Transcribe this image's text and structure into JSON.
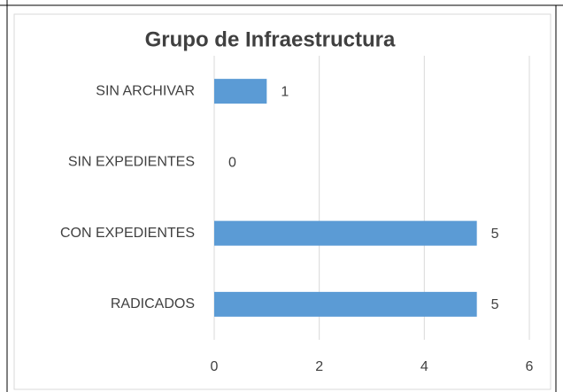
{
  "chart_data": {
    "type": "barh",
    "title": "Grupo de Infraestructura",
    "categories": [
      "SIN ARCHIVAR",
      "SIN EXPEDIENTES",
      "CON EXPEDIENTES",
      "RADICADOS"
    ],
    "values": [
      1,
      0,
      5,
      5
    ],
    "color": "#5b9bd5",
    "xlim": [
      0,
      6
    ],
    "xticks": [
      0,
      2,
      4,
      6
    ],
    "grid": true
  }
}
